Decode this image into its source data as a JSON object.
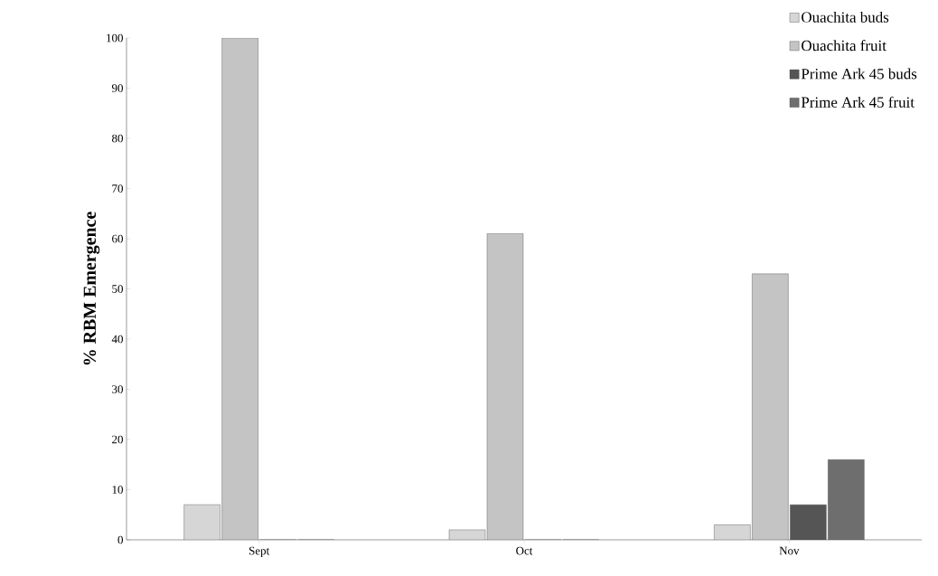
{
  "chart_data": {
    "type": "bar",
    "ylabel": "% RBM Emergence",
    "categories": [
      "Sept",
      "Oct",
      "Nov"
    ],
    "series": [
      {
        "name": "Ouachita buds",
        "color": "#d6d6d6",
        "values": [
          7,
          2,
          3
        ]
      },
      {
        "name": "Ouachita fruit",
        "color": "#c4c4c4",
        "values": [
          100,
          61,
          53
        ]
      },
      {
        "name": "Prime Ark 45 buds",
        "color": "#555555",
        "values": [
          0,
          0,
          7
        ]
      },
      {
        "name": "Prime Ark 45 fruit",
        "color": "#6e6e6e",
        "values": [
          0,
          0,
          16
        ]
      }
    ],
    "ylim": [
      0,
      100
    ],
    "yticks": [
      0,
      10,
      20,
      30,
      40,
      50,
      60,
      70,
      80,
      90,
      100
    ],
    "legend": "top right",
    "grid": false
  }
}
